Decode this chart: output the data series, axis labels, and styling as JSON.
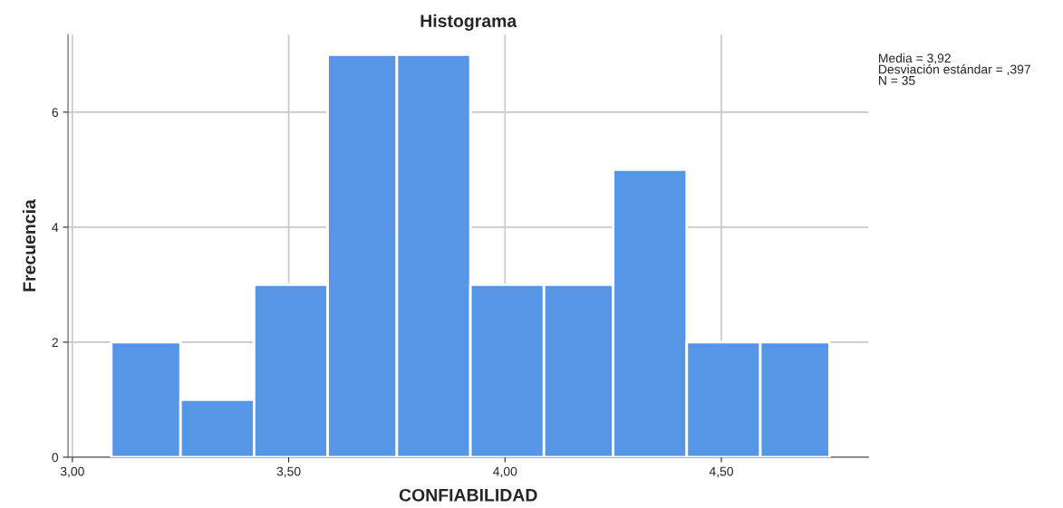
{
  "chart_data": {
    "type": "histogram",
    "title": "Histograma",
    "xlabel": "CONFIABILIDAD",
    "ylabel": "Frecuencia",
    "bins": [
      3.09,
      3.25,
      3.42,
      3.59,
      3.75,
      3.92,
      4.09,
      4.25,
      4.42,
      4.59,
      4.75
    ],
    "values": [
      2,
      1,
      3,
      7,
      7,
      3,
      3,
      5,
      2,
      2
    ],
    "color": "#5596e6",
    "xlim": [
      2.99,
      4.84
    ],
    "ylim": [
      0,
      7.35
    ],
    "xticks": [
      {
        "value": 3.0,
        "label": "3,00"
      },
      {
        "value": 3.5,
        "label": "3,50"
      },
      {
        "value": 4.0,
        "label": "4,00"
      },
      {
        "value": 4.5,
        "label": "4,50"
      }
    ],
    "yticks": [
      0,
      2,
      4,
      6
    ],
    "grid": true,
    "annotations": [
      "Media = 3,92",
      "Desviación estándar = ,397",
      "N = 35"
    ]
  }
}
